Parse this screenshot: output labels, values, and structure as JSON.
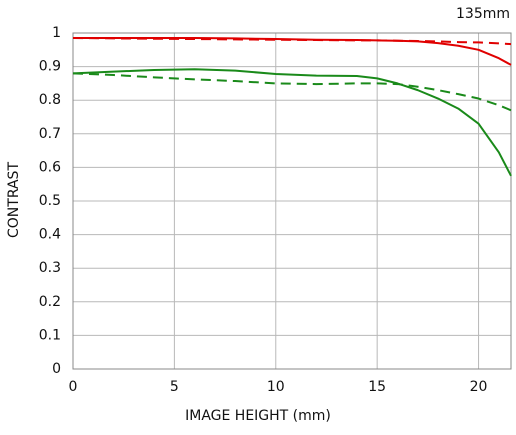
{
  "chart_data": {
    "type": "line",
    "title": "135mm",
    "xlabel": "IMAGE HEIGHT (mm)",
    "ylabel": "CONTRAST",
    "x": [
      0,
      2,
      4,
      6,
      8,
      10,
      12,
      14,
      15,
      16,
      17,
      18,
      19,
      20,
      21,
      21.6
    ],
    "series": [
      {
        "color": "#e00000",
        "dash": false,
        "values": [
          0.985,
          0.985,
          0.985,
          0.985,
          0.984,
          0.982,
          0.98,
          0.979,
          0.978,
          0.977,
          0.975,
          0.97,
          0.962,
          0.95,
          0.925,
          0.905
        ]
      },
      {
        "color": "#e00000",
        "dash": true,
        "values": [
          0.985,
          0.984,
          0.983,
          0.982,
          0.981,
          0.98,
          0.979,
          0.978,
          0.978,
          0.977,
          0.976,
          0.975,
          0.973,
          0.972,
          0.969,
          0.967
        ]
      },
      {
        "color": "#1a8a1a",
        "dash": false,
        "values": [
          0.88,
          0.885,
          0.89,
          0.892,
          0.888,
          0.878,
          0.873,
          0.872,
          0.865,
          0.85,
          0.83,
          0.805,
          0.775,
          0.73,
          0.645,
          0.575
        ]
      },
      {
        "color": "#1a8a1a",
        "dash": true,
        "values": [
          0.88,
          0.875,
          0.868,
          0.862,
          0.857,
          0.85,
          0.848,
          0.85,
          0.85,
          0.848,
          0.84,
          0.83,
          0.818,
          0.805,
          0.785,
          0.77
        ]
      }
    ],
    "xlim": [
      0,
      21.6
    ],
    "ylim": [
      0,
      1
    ],
    "xticks": [
      0,
      5,
      10,
      15,
      20
    ],
    "yticks": [
      0,
      0.1,
      0.2,
      0.3,
      0.4,
      0.5,
      0.6,
      0.7,
      0.8,
      0.9,
      1
    ],
    "grid": true
  }
}
